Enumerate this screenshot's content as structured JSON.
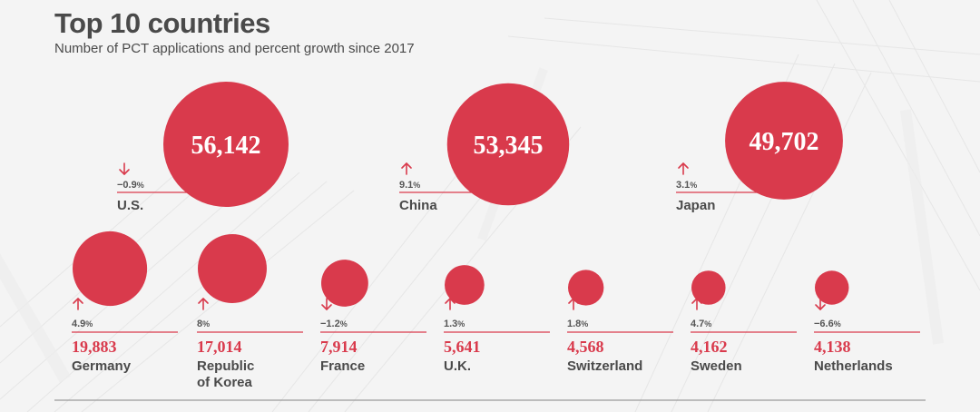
{
  "title": "Top 10 countries",
  "subtitle": "Number of PCT applications and percent growth since 2017",
  "colors": {
    "accent": "#d93a4c",
    "text": "#4a4a4a",
    "rule": "#9a9a9a"
  },
  "chart_data": {
    "type": "bubble",
    "title": "Top 10 countries",
    "subtitle": "Number of PCT applications and percent growth since 2017",
    "value_label": "PCT applications",
    "growth_unit": "%",
    "countries": [
      {
        "name": "U.S.",
        "value": 56142,
        "value_label": "56,142",
        "growth": -0.9,
        "growth_label": "−0.9",
        "direction": "down"
      },
      {
        "name": "China",
        "value": 53345,
        "value_label": "53,345",
        "growth": 9.1,
        "growth_label": "9.1",
        "direction": "up"
      },
      {
        "name": "Japan",
        "value": 49702,
        "value_label": "49,702",
        "growth": 3.1,
        "growth_label": "3.1",
        "direction": "up"
      },
      {
        "name": "Germany",
        "value": 19883,
        "value_label": "19,883",
        "growth": 4.9,
        "growth_label": "4.9",
        "direction": "up"
      },
      {
        "name": "Republic of Korea",
        "name_lines": [
          "Republic",
          "of Korea"
        ],
        "value": 17014,
        "value_label": "17,014",
        "growth": 8,
        "growth_label": "8",
        "direction": "up"
      },
      {
        "name": "France",
        "value": 7914,
        "value_label": "7,914",
        "growth": -1.2,
        "growth_label": "−1.2",
        "direction": "down"
      },
      {
        "name": "U.K.",
        "value": 5641,
        "value_label": "5,641",
        "growth": 1.3,
        "growth_label": "1.3",
        "direction": "up"
      },
      {
        "name": "Switzerland",
        "value": 4568,
        "value_label": "4,568",
        "growth": 1.8,
        "growth_label": "1.8",
        "direction": "up"
      },
      {
        "name": "Sweden",
        "value": 4162,
        "value_label": "4,162",
        "growth": 4.7,
        "growth_label": "4.7",
        "direction": "up"
      },
      {
        "name": "Netherlands",
        "value": 4138,
        "value_label": "4,138",
        "growth": -6.6,
        "growth_label": "−6.6",
        "direction": "down"
      }
    ]
  }
}
